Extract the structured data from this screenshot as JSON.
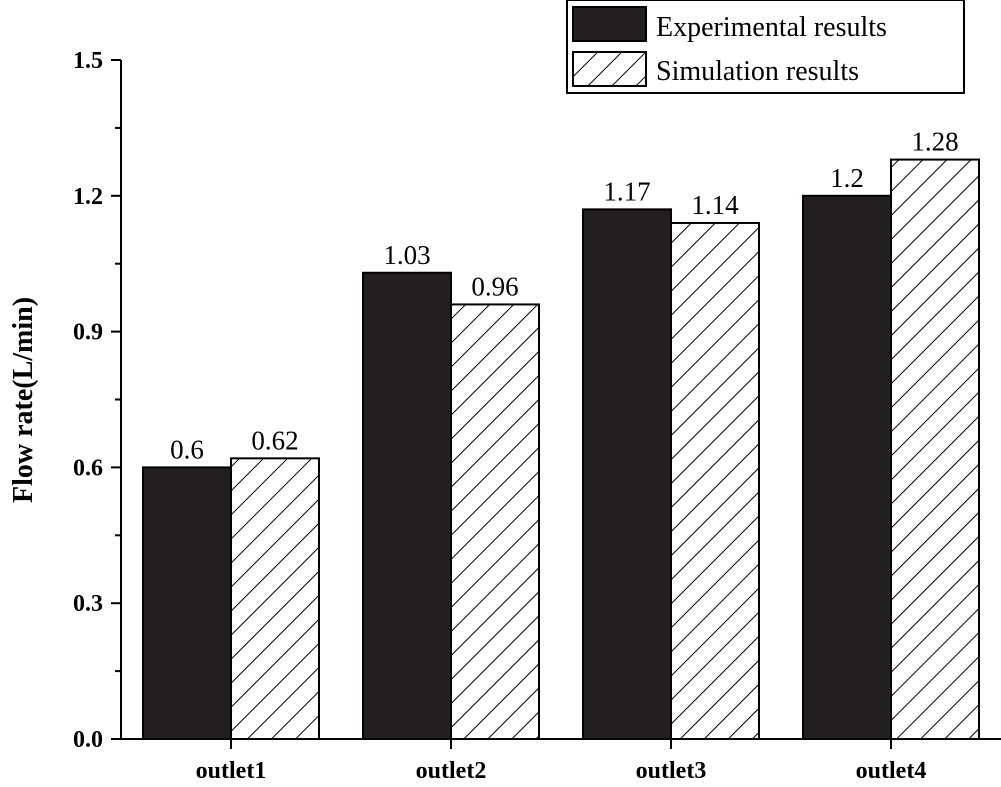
{
  "chart_data": {
    "type": "bar",
    "title": "",
    "xlabel": "",
    "ylabel": "Flow rate(L/min)",
    "categories": [
      "outlet1",
      "outlet2",
      "outlet3",
      "outlet4"
    ],
    "series": [
      {
        "name": "Experimental results",
        "values": [
          0.6,
          1.03,
          1.17,
          1.2
        ],
        "value_labels": [
          "0.6",
          "1.03",
          "1.17",
          "1.2"
        ],
        "fill": "#231f20",
        "pattern": "solid"
      },
      {
        "name": "Simulation results",
        "values": [
          0.62,
          0.96,
          1.14,
          1.28
        ],
        "value_labels": [
          "0.62",
          "0.96",
          "1.14",
          "1.28"
        ],
        "fill": "#ffffff",
        "pattern": "hatch"
      }
    ],
    "ylim": [
      0,
      1.5
    ],
    "yticks": [
      0.0,
      0.3,
      0.6,
      0.9,
      1.2,
      1.5
    ],
    "ytick_labels": [
      "0.0",
      "0.3",
      "0.6",
      "0.9",
      "1.2",
      "1.5"
    ],
    "grid": false,
    "legend_position": "top-right"
  }
}
